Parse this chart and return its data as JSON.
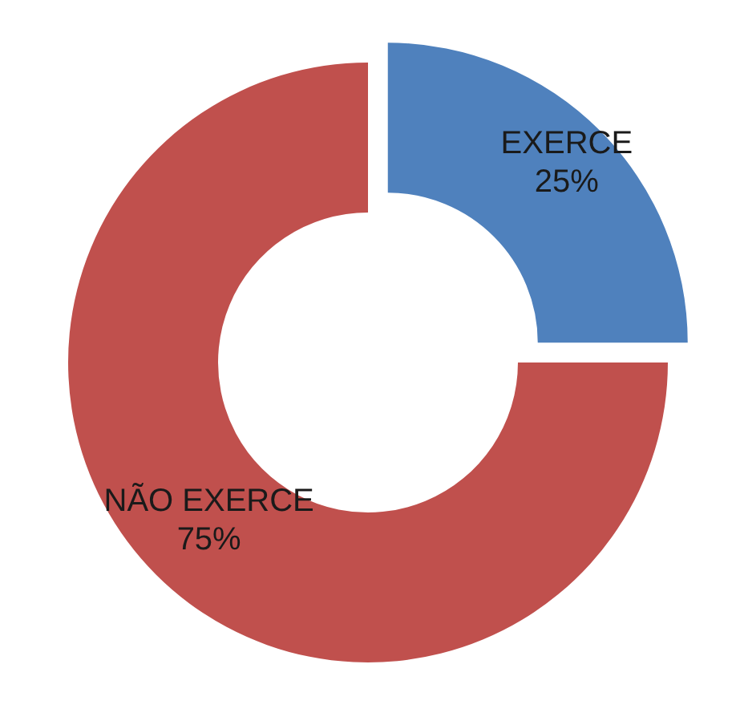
{
  "chart_data": {
    "type": "donut",
    "categories": [
      "EXERCE",
      "NÃO EXERCE"
    ],
    "values": [
      25,
      75
    ],
    "colors": [
      "#4f81bd",
      "#c0504d"
    ],
    "value_labels": [
      "25%",
      "75%"
    ],
    "legend": false
  }
}
